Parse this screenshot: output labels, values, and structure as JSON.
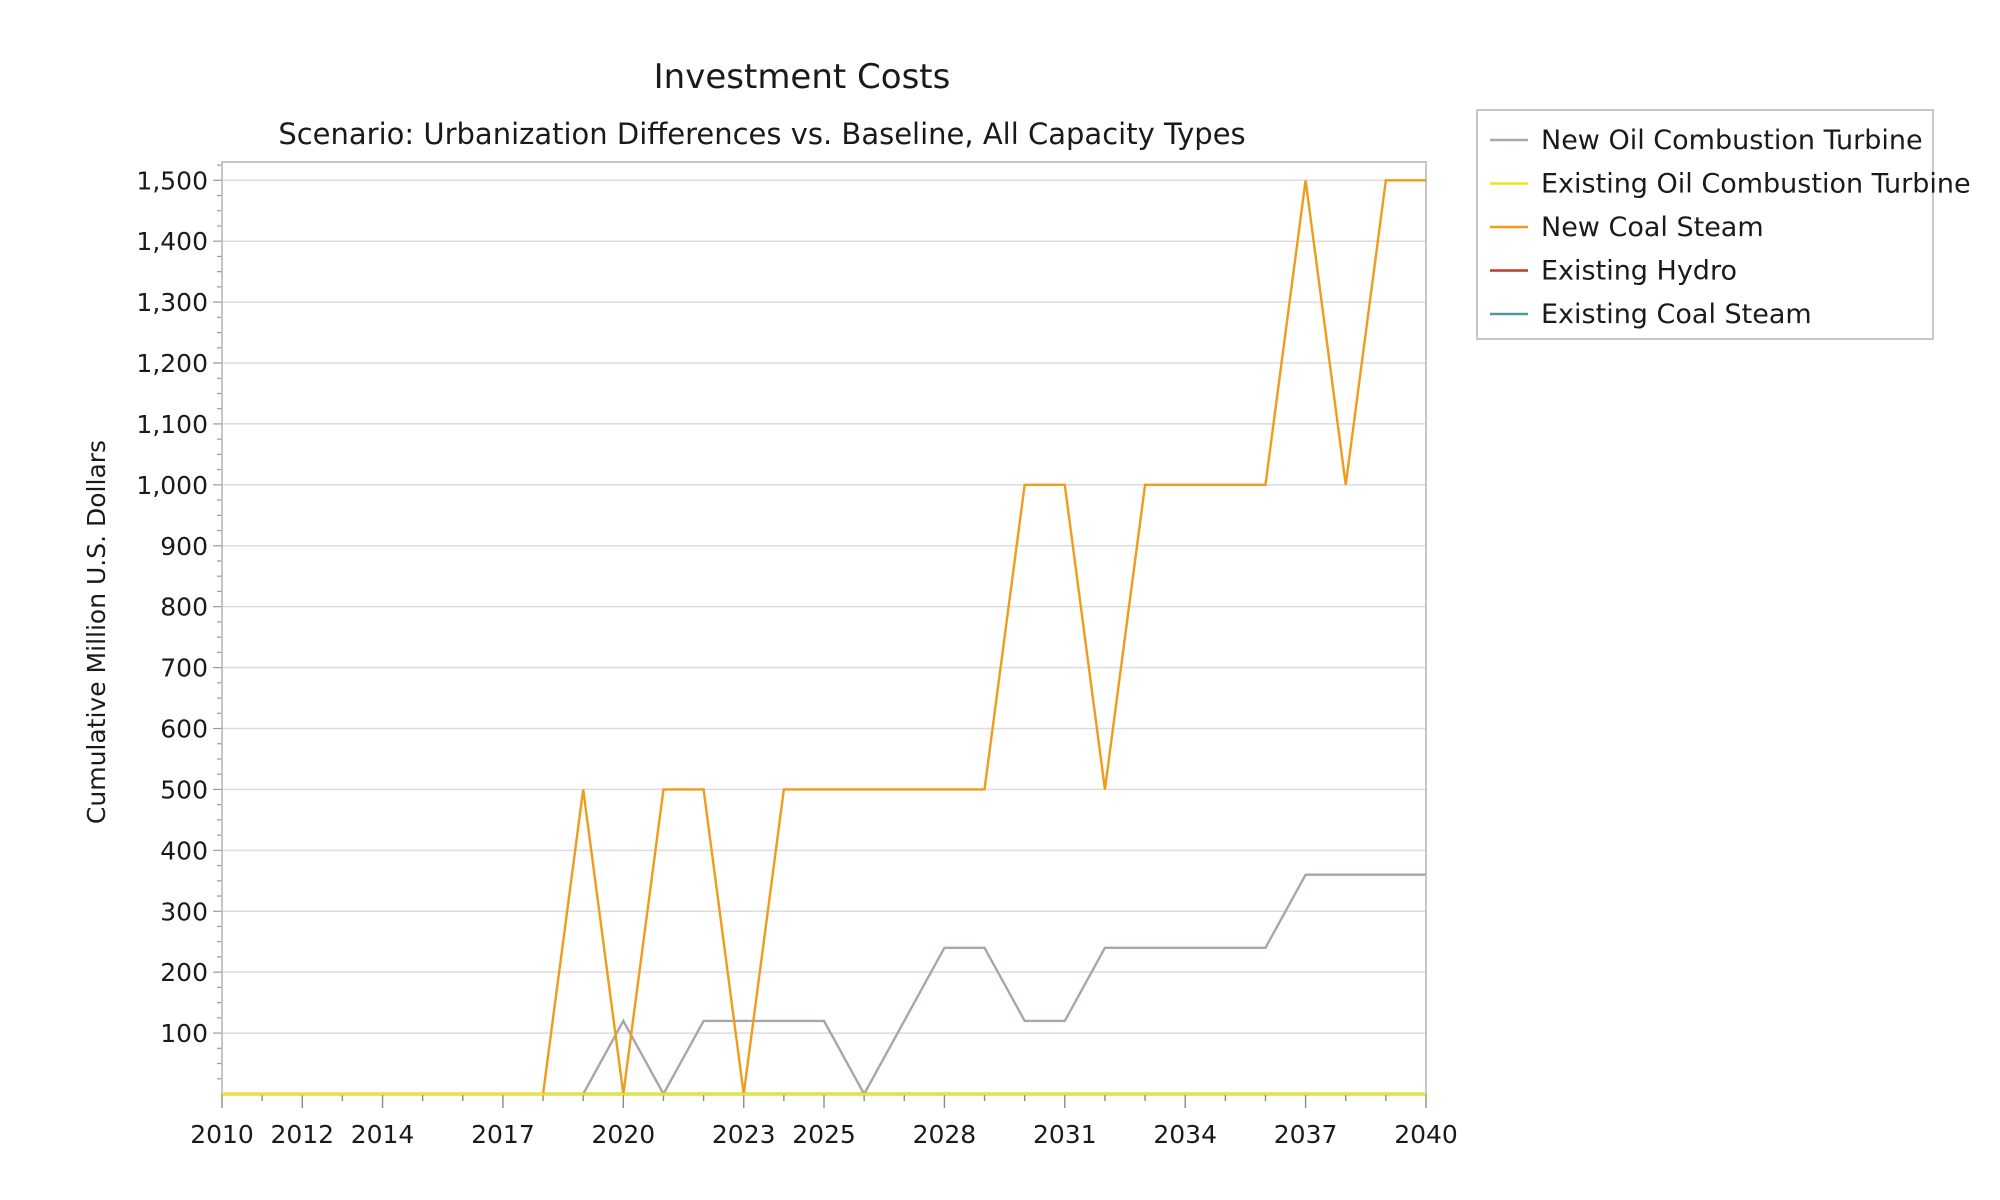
{
  "chart_data": {
    "type": "line",
    "title": "Investment Costs",
    "subtitle": "Scenario: Urbanization Differences vs. Baseline, All Capacity Types",
    "ylabel": "Cumulative Million U.S. Dollars",
    "xlabel": "",
    "xlim": [
      2010,
      2040
    ],
    "ylim": [
      0,
      1530
    ],
    "x_ticks": [
      "2010",
      "2012",
      "2014",
      "2017",
      "2020",
      "2023",
      "2025",
      "2028",
      "2031",
      "2034",
      "2037",
      "2040"
    ],
    "y_ticks": [
      "100",
      "200",
      "300",
      "400",
      "500",
      "600",
      "700",
      "800",
      "900",
      "1,000",
      "1,100",
      "1,200",
      "1,300",
      "1,400",
      "1,500"
    ],
    "y_tick_values": [
      100,
      200,
      300,
      400,
      500,
      600,
      700,
      800,
      900,
      1000,
      1100,
      1200,
      1300,
      1400,
      1500
    ],
    "grid": true,
    "legend_position": "right",
    "x": [
      2010,
      2011,
      2012,
      2013,
      2014,
      2015,
      2016,
      2017,
      2018,
      2019,
      2020,
      2021,
      2022,
      2023,
      2024,
      2025,
      2026,
      2027,
      2028,
      2029,
      2030,
      2031,
      2032,
      2033,
      2034,
      2035,
      2036,
      2037,
      2038,
      2039,
      2040
    ],
    "series": [
      {
        "name": "New Oil Combustion Turbine",
        "color": "#aba5ab",
        "values": [
          0,
          0,
          0,
          0,
          0,
          0,
          0,
          0,
          0,
          0,
          120,
          0,
          120,
          120,
          120,
          120,
          0,
          120,
          240,
          240,
          120,
          120,
          240,
          240,
          240,
          240,
          240,
          360,
          360,
          360,
          360
        ]
      },
      {
        "name": "Existing Oil Combustion Turbine",
        "color": "#e8e81c",
        "values": [
          0,
          0,
          0,
          0,
          0,
          0,
          0,
          0,
          0,
          0,
          0,
          0,
          0,
          0,
          0,
          0,
          0,
          0,
          0,
          0,
          0,
          0,
          0,
          0,
          0,
          0,
          0,
          0,
          0,
          0,
          0
        ]
      },
      {
        "name": "New Coal Steam",
        "color": "#f09b1a",
        "values": [
          0,
          0,
          0,
          0,
          0,
          0,
          0,
          0,
          0,
          500,
          0,
          500,
          500,
          0,
          500,
          500,
          500,
          500,
          500,
          500,
          1000,
          1000,
          500,
          1000,
          1000,
          1000,
          1000,
          1500,
          1000,
          1500,
          1500
        ]
      },
      {
        "name": "Existing Hydro",
        "color": "#c0392b",
        "values": [
          0,
          0,
          0,
          0,
          0,
          0,
          0,
          0,
          0,
          0,
          0,
          0,
          0,
          0,
          0,
          0,
          0,
          0,
          0,
          0,
          0,
          0,
          0,
          0,
          0,
          0,
          0,
          0,
          0,
          0,
          0
        ]
      },
      {
        "name": "Existing Coal Steam",
        "color": "#4a9aa5",
        "values": [
          0,
          0,
          0,
          0,
          0,
          0,
          0,
          0,
          0,
          0,
          0,
          0,
          0,
          0,
          0,
          0,
          0,
          0,
          0,
          0,
          0,
          0,
          0,
          0,
          0,
          0,
          0,
          0,
          0,
          0,
          0
        ]
      }
    ]
  }
}
